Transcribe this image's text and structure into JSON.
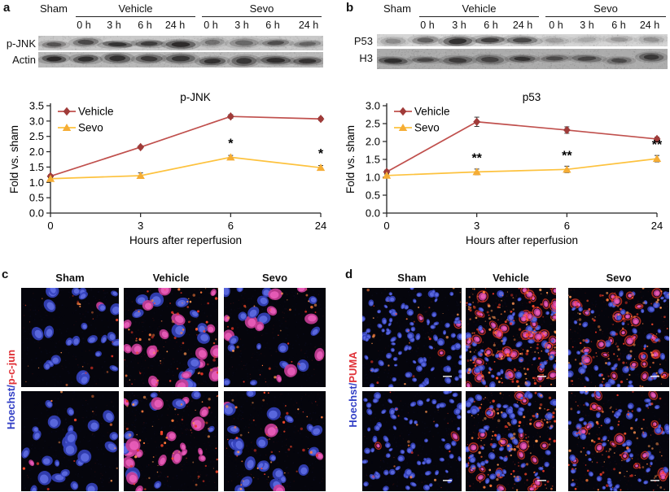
{
  "colors": {
    "vehicle_line": "#c0504d",
    "vehicle_marker": "#a03b39",
    "sevo_line": "#fdc23e",
    "sevo_marker": "#f0a9333",
    "sevo_marker_fill": "#f5ad35",
    "axis": "#222222",
    "hoechst_blue": "#3340c6",
    "stain_red": "#e03238",
    "nucleus_blue_outer": "#3543bd",
    "nucleus_blue_inner": "#6472e8",
    "nucleus_pink_outer": "#c93e97",
    "nucleus_pink_inner": "#f063c0",
    "speck_reds": [
      "#ff4a2a",
      "#ff7a3a",
      "#e83324",
      "#ff9550"
    ]
  },
  "panels": {
    "a": {
      "letter": "a",
      "blot": {
        "groups": [
          "Sham",
          "Vehicle",
          "Sevo"
        ],
        "times": [
          "0 h",
          "3 h",
          "6 h",
          "24 h"
        ],
        "rows": [
          {
            "label": "p-JNK",
            "bg": 200,
            "band_ry": 0.24,
            "bands": [
              0.55,
              0.62,
              0.82,
              0.72,
              0.88,
              0.38,
              0.42,
              0.6,
              0.46
            ]
          },
          {
            "label": "Actin",
            "bg": 185,
            "band_ry": 0.26,
            "bands": [
              0.9,
              0.82,
              0.8,
              0.72,
              0.75,
              0.8,
              0.74,
              0.84,
              0.78
            ]
          }
        ]
      }
    },
    "b": {
      "letter": "b",
      "blot": {
        "groups": [
          "Sham",
          "Vehicle",
          "Sevo"
        ],
        "times": [
          "0 h",
          "3 h",
          "6 h",
          "24 h"
        ],
        "rows": [
          {
            "label": "P53",
            "bg": 213,
            "band_ry": 0.3,
            "bands": [
              0.28,
              0.5,
              0.85,
              0.72,
              0.66,
              0.2,
              0.16,
              0.24,
              0.26
            ]
          },
          {
            "label": "H3",
            "bg": 172,
            "band_ry": 0.17,
            "bands": [
              0.82,
              0.6,
              0.68,
              0.62,
              0.76,
              0.55,
              0.6,
              0.56,
              0.7
            ]
          }
        ]
      }
    },
    "c": {
      "letter": "c",
      "columns": [
        "Sham",
        "Vehicle",
        "Sevo"
      ],
      "side_label": {
        "blue": "Hoechst",
        "sep": "/",
        "red": "p-c-jun"
      },
      "cells": [
        {
          "n": 27,
          "r": 6.2,
          "pink": 0.05,
          "dots": 22,
          "haze": 0.05,
          "ring": false,
          "scalebar": false
        },
        {
          "n": 31,
          "r": 6.6,
          "pink": 0.6,
          "dots": 80,
          "haze": 0.12,
          "ring": false,
          "scalebar": false
        },
        {
          "n": 28,
          "r": 6.2,
          "pink": 0.3,
          "dots": 34,
          "haze": 0.08,
          "ring": false,
          "scalebar": false
        },
        {
          "n": 25,
          "r": 6.2,
          "pink": 0.03,
          "dots": 14,
          "haze": 0.04,
          "ring": false,
          "scalebar": false
        },
        {
          "n": 30,
          "r": 6.6,
          "pink": 0.55,
          "dots": 65,
          "haze": 0.12,
          "ring": false,
          "scalebar": false
        },
        {
          "n": 27,
          "r": 6.2,
          "pink": 0.1,
          "dots": 55,
          "haze": 0.1,
          "ring": false,
          "scalebar": false
        }
      ]
    },
    "d": {
      "letter": "d",
      "columns": [
        "Sham",
        "Vehicle",
        "Sevo"
      ],
      "side_label": {
        "blue": "Hoechst",
        "sep": "/",
        "red": "PUMA"
      },
      "cells": [
        {
          "n": 100,
          "r": 3.3,
          "pink": 0.04,
          "dots": 30,
          "haze": 0.05,
          "ring": true,
          "scalebar": true
        },
        {
          "n": 100,
          "r": 3.5,
          "pink": 0.34,
          "dots": 190,
          "haze": 0.24,
          "ring": true,
          "scalebar": true
        },
        {
          "n": 92,
          "r": 3.3,
          "pink": 0.25,
          "dots": 140,
          "haze": 0.17,
          "ring": true,
          "scalebar": true
        },
        {
          "n": 78,
          "r": 3.3,
          "pink": 0.03,
          "dots": 20,
          "haze": 0.04,
          "ring": true,
          "scalebar": true
        },
        {
          "n": 88,
          "r": 3.5,
          "pink": 0.3,
          "dots": 150,
          "haze": 0.2,
          "ring": true,
          "scalebar": true
        },
        {
          "n": 82,
          "r": 3.3,
          "pink": 0.2,
          "dots": 110,
          "haze": 0.14,
          "ring": true,
          "scalebar": true
        }
      ]
    }
  },
  "chart_data": [
    {
      "id": "chart-a",
      "type": "line",
      "title": "p-JNK",
      "categories": [
        0,
        3,
        6,
        24
      ],
      "xlabel": "Hours after reperfusion",
      "ylabel": "Fold vs. sham",
      "ylim": [
        0,
        3.5
      ],
      "ytick_step": 0.5,
      "grid": false,
      "legend_position": "top-left",
      "series": [
        {
          "name": "Vehicle",
          "marker": "diamond",
          "values": [
            1.2,
            2.15,
            3.15,
            3.07
          ],
          "err": [
            0.05,
            0.05,
            0.06,
            0.05
          ]
        },
        {
          "name": "Sevo",
          "marker": "triangle",
          "values": [
            1.12,
            1.22,
            1.82,
            1.48
          ],
          "err": [
            0.04,
            0.09,
            0.06,
            0.07
          ]
        }
      ],
      "annotations": [
        {
          "text": "*",
          "series": 1,
          "point": 2
        },
        {
          "text": "*",
          "series": 1,
          "point": 3
        }
      ]
    },
    {
      "id": "chart-b",
      "type": "line",
      "title": "p53",
      "categories": [
        0,
        3,
        6,
        24
      ],
      "xlabel": "Hours after reperfusion",
      "ylabel": "Fold vs. sham",
      "ylim": [
        0,
        3.0
      ],
      "ytick_step": 0.5,
      "grid": false,
      "legend_position": "top-left",
      "series": [
        {
          "name": "Vehicle",
          "marker": "diamond",
          "values": [
            1.15,
            2.55,
            2.32,
            2.07
          ],
          "err": [
            0.05,
            0.13,
            0.09,
            0.05
          ]
        },
        {
          "name": "Sevo",
          "marker": "triangle",
          "values": [
            1.05,
            1.15,
            1.22,
            1.52
          ],
          "err": [
            0.04,
            0.08,
            0.09,
            0.09
          ]
        }
      ],
      "annotations": [
        {
          "text": "**",
          "series": 1,
          "point": 1
        },
        {
          "text": "**",
          "series": 1,
          "point": 2
        },
        {
          "text": "**",
          "series": 1,
          "point": 3
        }
      ]
    }
  ]
}
